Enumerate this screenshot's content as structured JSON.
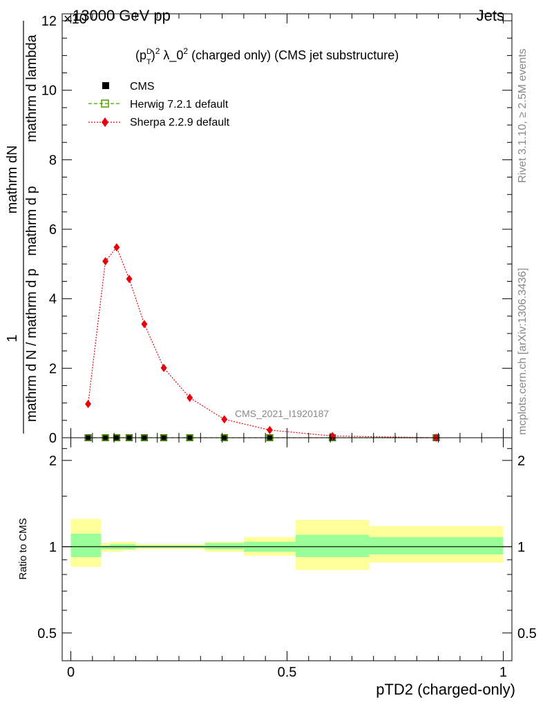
{
  "header": {
    "left_title": "13000 GeV pp",
    "right_title": "Jets",
    "exponent_label": "×10"
  },
  "side_labels": {
    "rivet": "Rivet 3.1.10, ≥ 2.5M events",
    "mcplots": "mcplots.cern.ch [arXiv:1306.3436]"
  },
  "watermark": "CMS_2021_I1920187",
  "plot_title": {
    "prefix": "(p",
    "sup_d": "D",
    "sub_t": "T",
    "pow": "2",
    "lambda": " λ_0",
    "rest": " (charged only) (CMS jet substructure)"
  },
  "y_axis_label": {
    "num_left": "1",
    "num_right": "mathrm dN",
    "den_left": "mathrm d N / mathrm d p",
    "den_mid": " mathrm d p",
    "den_right": " mathrm d lambda",
    "sub_t": "T"
  },
  "x_axis_label": "pTD2 (charged-only)",
  "ratio_axis_label": "Ratio to CMS",
  "legend": {
    "cms": "CMS",
    "herwig": "Herwig 7.2.1 default",
    "sherpa": "Sherpa 2.2.9 default"
  },
  "colors": {
    "cms": "#000000",
    "herwig": "#4d9a00",
    "sherpa": "#e8000b",
    "band_inner": "#99ff99",
    "band_outer": "#ffff99"
  },
  "chart_data": {
    "type": "scatter",
    "main": {
      "ylim": [
        0,
        12.2
      ],
      "xlim": [
        -0.02,
        1.02
      ],
      "y_ticks": [
        "0",
        "2",
        "4",
        "6",
        "8",
        "10",
        "12"
      ],
      "series": [
        {
          "name": "CMS",
          "x": [
            0.04,
            0.08,
            0.106,
            0.135,
            0.17,
            0.215,
            0.275,
            0.355,
            0.46,
            0.605,
            0.845
          ],
          "values": [
            0,
            0,
            0,
            0,
            0,
            0,
            0,
            0,
            0,
            0,
            0
          ]
        },
        {
          "name": "Herwig 7.2.1 default",
          "x": [
            0.04,
            0.08,
            0.106,
            0.135,
            0.17,
            0.215,
            0.275,
            0.355,
            0.46,
            0.605,
            0.845
          ],
          "values": [
            0,
            0,
            0,
            0,
            0,
            0,
            0,
            0,
            0,
            0,
            0
          ]
        },
        {
          "name": "Sherpa 2.2.9 default",
          "x": [
            0.04,
            0.08,
            0.106,
            0.135,
            0.17,
            0.215,
            0.275,
            0.355,
            0.46,
            0.605,
            0.845
          ],
          "values": [
            0.97,
            5.08,
            5.48,
            4.57,
            3.27,
            2.01,
            1.15,
            0.53,
            0.22,
            0.05,
            0.0
          ]
        }
      ]
    },
    "ratio": {
      "ylim": [
        0.4,
        2.4
      ],
      "log_scale": true,
      "y_ticks": [
        "0.5",
        "1",
        "2"
      ],
      "x_ticks": [
        "0",
        "0.5",
        "1"
      ],
      "bins": [
        {
          "x0": 0.0,
          "x1": 0.07,
          "inner": [
            0.92,
            1.11
          ],
          "outer": [
            0.85,
            1.25
          ]
        },
        {
          "x0": 0.07,
          "x1": 0.09,
          "inner": [
            0.98,
            1.01
          ],
          "outer": [
            0.96,
            1.03
          ]
        },
        {
          "x0": 0.09,
          "x1": 0.12,
          "inner": [
            0.98,
            1.02
          ],
          "outer": [
            0.96,
            1.04
          ]
        },
        {
          "x0": 0.12,
          "x1": 0.15,
          "inner": [
            0.98,
            1.02
          ],
          "outer": [
            0.97,
            1.04
          ]
        },
        {
          "x0": 0.15,
          "x1": 0.19,
          "inner": [
            0.99,
            1.01
          ],
          "outer": [
            0.98,
            1.02
          ]
        },
        {
          "x0": 0.19,
          "x1": 0.24,
          "inner": [
            0.99,
            1.01
          ],
          "outer": [
            0.98,
            1.02
          ]
        },
        {
          "x0": 0.24,
          "x1": 0.31,
          "inner": [
            0.99,
            1.01
          ],
          "outer": [
            0.98,
            1.02
          ]
        },
        {
          "x0": 0.31,
          "x1": 0.4,
          "inner": [
            0.98,
            1.03
          ],
          "outer": [
            0.96,
            1.04
          ]
        },
        {
          "x0": 0.4,
          "x1": 0.52,
          "inner": [
            0.96,
            1.04
          ],
          "outer": [
            0.93,
            1.08
          ]
        },
        {
          "x0": 0.52,
          "x1": 0.69,
          "inner": [
            0.92,
            1.1
          ],
          "outer": [
            0.83,
            1.24
          ]
        },
        {
          "x0": 0.69,
          "x1": 1.0,
          "inner": [
            0.94,
            1.08
          ],
          "outer": [
            0.88,
            1.18
          ]
        }
      ]
    }
  }
}
